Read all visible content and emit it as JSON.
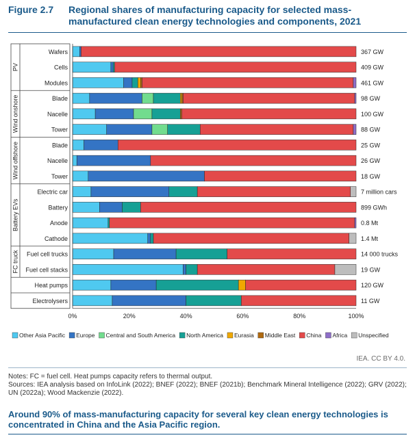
{
  "figure_number": "Figure 2.7",
  "figure_title": "Regional shares of manufacturing capacity for selected mass-manufactured clean energy technologies and components, 2021",
  "credit": "IEA. CC BY 4.0.",
  "notes": {
    "note_line": "Notes: FC = fuel cell. Heat pumps capacity refers to thermal output.",
    "sources_line": "Sources: IEA analysis based on InfoLink (2022); BNEF (2022); BNEF (2021b); Benchmark Mineral Intelligence (2022); GRV (2022); UN (2022a); Wood Mackenzie (2022)."
  },
  "conclusion": "Around 90% of mass-manufacturing capacity for several key clean energy technologies is concentrated in China and the Asia Pacific region.",
  "chart_data": {
    "type": "bar",
    "orientation": "horizontal",
    "stacked": true,
    "x_ticks": [
      "0%",
      "20%",
      "40%",
      "60%",
      "80%",
      "100%"
    ],
    "xlim": [
      0,
      100
    ],
    "grid": false,
    "legend_position": "bottom",
    "series": [
      {
        "name": "Other Asia Pacific",
        "color": "#4fc9f0"
      },
      {
        "name": "Europe",
        "color": "#3474c4"
      },
      {
        "name": "Central and South America",
        "color": "#72dc8e"
      },
      {
        "name": "North America",
        "color": "#16a095"
      },
      {
        "name": "Eurasia",
        "color": "#f0a800"
      },
      {
        "name": "Middle East",
        "color": "#b06a10"
      },
      {
        "name": "China",
        "color": "#e34a4a"
      },
      {
        "name": "Africa",
        "color": "#8e6ec8"
      },
      {
        "name": "Unspecified",
        "color": "#bdbdbd"
      }
    ],
    "groups": [
      {
        "label": "PV",
        "rows": [
          {
            "category": "Wafers",
            "value_label": "367 GW",
            "values": [
              2.5,
              0.5,
              0,
              0,
              0,
              0,
              97,
              0,
              0
            ]
          },
          {
            "category": "Cells",
            "value_label": "409 GW",
            "values": [
              13.5,
              0.8,
              0,
              0.5,
              0,
              0,
              85.2,
              0,
              0
            ]
          },
          {
            "category": "Modules",
            "value_label": "461 GW",
            "values": [
              18,
              3,
              0,
              2,
              1,
              0.5,
              74.5,
              1,
              0
            ]
          }
        ]
      },
      {
        "label": "Wind onshore",
        "rows": [
          {
            "category": "Blade",
            "value_label": "98 GW",
            "values": [
              6,
              18.5,
              4,
              9.5,
              0.5,
              0.5,
              60.5,
              0.5,
              0
            ]
          },
          {
            "category": "Nacelle",
            "value_label": "100 GW",
            "values": [
              8,
              13.5,
              6.5,
              10,
              0,
              0.5,
              61.5,
              0,
              0
            ]
          },
          {
            "category": "Tower",
            "value_label": "88 GW",
            "values": [
              12,
              16,
              5.5,
              11.5,
              0,
              0,
              54,
              1,
              0
            ]
          }
        ]
      },
      {
        "label": "Wind offshore",
        "rows": [
          {
            "category": "Blade",
            "value_label": "25 GW",
            "values": [
              4,
              12,
              0,
              0,
              0,
              0,
              84,
              0,
              0
            ]
          },
          {
            "category": "Nacelle",
            "value_label": "26 GW",
            "values": [
              1.5,
              26,
              0,
              0,
              0,
              0,
              72.5,
              0,
              0
            ]
          },
          {
            "category": "Tower",
            "value_label": "18 GW",
            "values": [
              5.5,
              41,
              0,
              0,
              0,
              0,
              53.5,
              0,
              0
            ]
          }
        ]
      },
      {
        "label": "Battery EVs",
        "rows": [
          {
            "category": "Electric car",
            "value_label": "7 million cars",
            "values": [
              6.5,
              27.5,
              0,
              10,
              0,
              0,
              54,
              0,
              2
            ]
          },
          {
            "category": "Battery",
            "value_label": "899 GWh",
            "values": [
              9.5,
              8,
              0,
              6.5,
              0,
              0,
              76,
              0,
              0
            ]
          },
          {
            "category": "Anode",
            "value_label": "0.8 Mt",
            "values": [
              12.5,
              0,
              0,
              0.5,
              0,
              0,
              86.5,
              0.5,
              0
            ]
          },
          {
            "category": "Cathode",
            "value_label": "1.4 Mt",
            "values": [
              26.5,
              1,
              0,
              1,
              0,
              0,
              69,
              0,
              2.5
            ]
          }
        ]
      },
      {
        "label": "FC truck",
        "rows": [
          {
            "category": "Fuel cell trucks",
            "value_label": "14 000 trucks",
            "values": [
              14.5,
              22,
              0,
              18,
              0,
              0,
              45.5,
              0,
              0
            ]
          },
          {
            "category": "Fuel cell stacks",
            "value_label": "19 GW",
            "values": [
              39,
              1,
              0,
              4,
              0,
              0,
              48.5,
              0,
              7.5
            ]
          }
        ]
      },
      {
        "label": "",
        "rows": [
          {
            "category": "Heat pumps",
            "value_label": "120 GW",
            "values": [
              13.5,
              16,
              0,
              29,
              2.5,
              0,
              39,
              0,
              0
            ]
          }
        ]
      },
      {
        "label": "",
        "rows": [
          {
            "category": "Electrolysers",
            "value_label": "11 GW",
            "values": [
              14,
              26,
              0,
              19.5,
              0,
              0,
              40.5,
              0,
              0
            ]
          }
        ]
      }
    ]
  }
}
